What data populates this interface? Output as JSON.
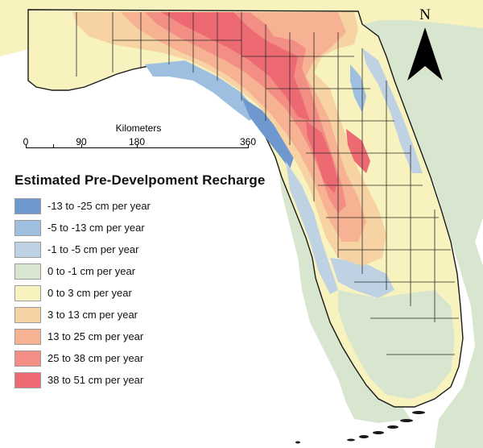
{
  "map": {
    "legend_title": "Estimated Pre-Develpoment Recharge",
    "legend": [
      {
        "label": "-13 to -25 cm per year",
        "color": "#6f98cf"
      },
      {
        "label": "-5 to -13 cm per year",
        "color": "#9fbfe0"
      },
      {
        "label": "-1 to -5 cm per year",
        "color": "#bfd2e4"
      },
      {
        "label": "0 to -1 cm per year",
        "color": "#d8e6cf"
      },
      {
        "label": "0 to 3 cm per year",
        "color": "#f7f2be"
      },
      {
        "label": "3 to 13 cm per year",
        "color": "#f7d3a4"
      },
      {
        "label": "13 to 25 cm per year",
        "color": "#f6b292"
      },
      {
        "label": "25 to 38 cm per year",
        "color": "#f28e84"
      },
      {
        "label": "38 to 51 cm per year",
        "color": "#ee6a73"
      }
    ],
    "scale": {
      "title": "Kilometers",
      "ticks": [
        "0",
        "90",
        "180",
        "360"
      ]
    },
    "north_label": "N",
    "colors": {
      "water": "#ffffff",
      "coastline": "#1a1a1a",
      "county_lines": "#2a2a2a"
    }
  }
}
